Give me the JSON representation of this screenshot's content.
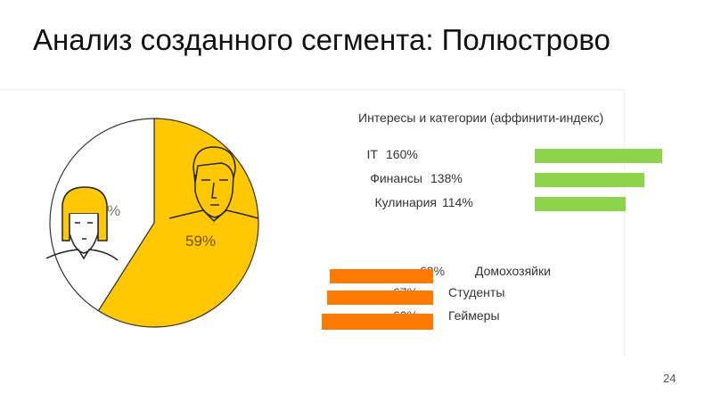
{
  "title": "Анализ созданного сегмента: Полюстрово",
  "page_number": "24",
  "chart_data": [
    {
      "type": "pie",
      "title": "",
      "slices": [
        {
          "name": "male",
          "value": 59,
          "label": "59%",
          "color": "#FFC800"
        },
        {
          "name": "female",
          "value": 41,
          "label": "41%",
          "color": "#FFFFFF"
        }
      ]
    },
    {
      "type": "bar",
      "title": "Интересы и категории (аффинити-индекс)",
      "categories": [
        "IT",
        "Финансы",
        "Кулинария"
      ],
      "values": [
        160,
        138,
        114
      ],
      "labels": [
        "160%",
        "138%",
        "114%"
      ],
      "color": "#8CD44A"
    },
    {
      "type": "bar",
      "title": "",
      "categories": [
        "Домохозяйки",
        "Студенты",
        "Геймеры"
      ],
      "values": [
        69,
        67,
        60
      ],
      "labels": [
        "69%",
        "67%",
        "60%"
      ],
      "color": "#FF7A00"
    }
  ]
}
